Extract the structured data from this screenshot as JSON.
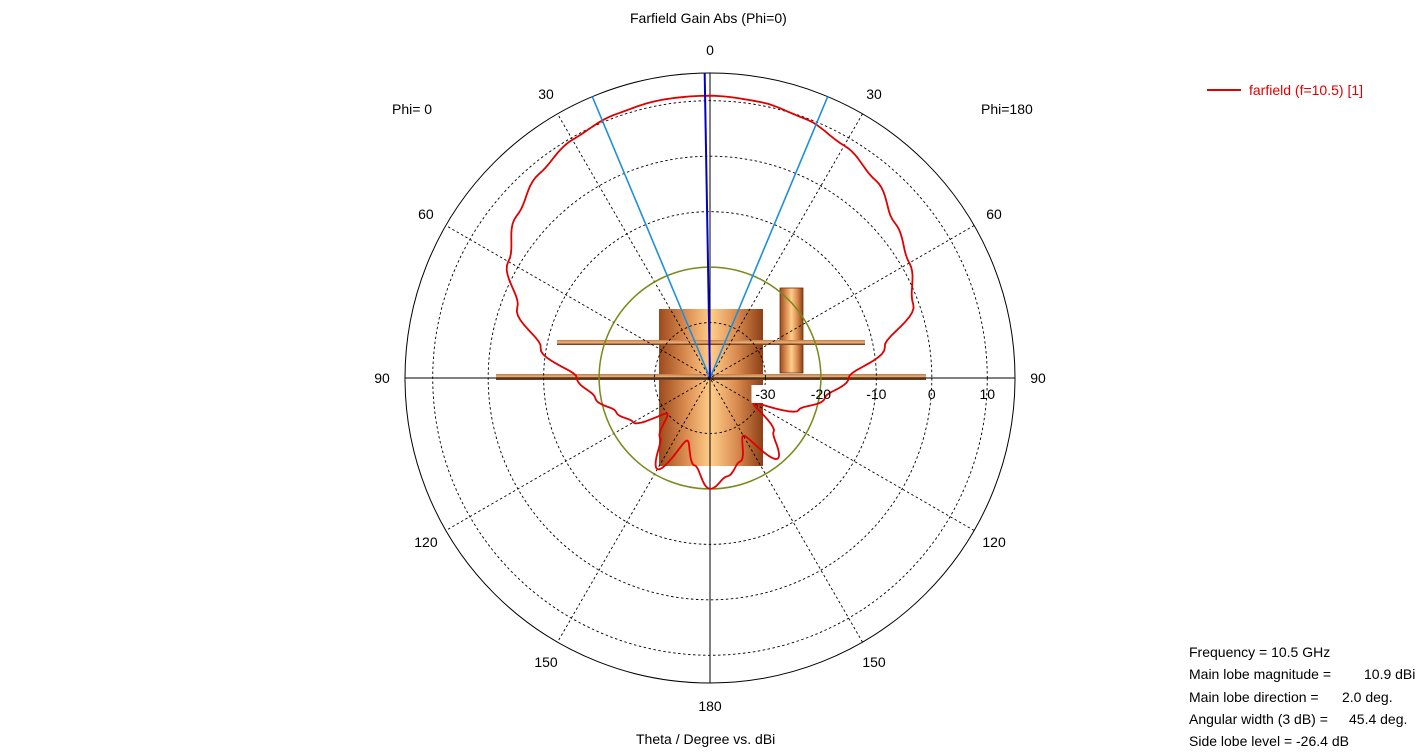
{
  "title": "Farfield Gain Abs (Phi=0)",
  "xlabel": "Theta / Degree vs. dBi",
  "phi_left": "Phi=  0",
  "phi_right": "Phi=180",
  "legend": {
    "label": "farfield (f=10.5) [1]",
    "color": "#e00000"
  },
  "info": {
    "frequency": "Frequency = 10.5 GHz",
    "main_lobe_magnitude_label": "Main lobe magnitude =",
    "main_lobe_magnitude_value": "10.9 dBi",
    "main_lobe_direction_label": "Main lobe direction =",
    "main_lobe_direction_value": "2.0 deg.",
    "angular_width_label": "Angular width (3 dB) =",
    "angular_width_value": "45.4 deg.",
    "side_lobe_level": "Side lobe level =  -26.4 dB"
  },
  "chart_data": {
    "type": "polar",
    "title": "Farfield Gain Abs (Phi=0)",
    "xlabel": "Theta / Degree vs. dBi",
    "angle_ticks": [
      "0",
      "30",
      "60",
      "90",
      "120",
      "150",
      "180",
      "150",
      "120",
      "90",
      "60",
      "30"
    ],
    "radial_ticks": [
      "-30",
      "-20",
      "-10",
      "0",
      "10"
    ],
    "radial_range": [
      -40,
      15
    ],
    "grid": true,
    "legend_position": "top-right",
    "main_lobe_direction_deg": 2.0,
    "main_lobe_magnitude_dbi": 10.9,
    "beamwidth_3db_deg": 45.4,
    "side_lobe_level_db": -26.4,
    "reference_circle_dbi": -20,
    "series": [
      {
        "name": "farfield (f=10.5) [1]",
        "color": "#e00000",
        "theta_deg": [
          -180,
          -170,
          -160,
          -150,
          -140,
          -130,
          -120,
          -110,
          -100,
          -90,
          -80,
          -70,
          -60,
          -50,
          -40,
          -30,
          -20,
          -10,
          0,
          10,
          20,
          30,
          40,
          50,
          60,
          70,
          80,
          90,
          100,
          110,
          120,
          130,
          140,
          150,
          160,
          170,
          180
        ],
        "gain_dbi": [
          -20,
          -24,
          -28,
          -21,
          -26,
          -30,
          -24,
          -22,
          -19,
          -16,
          -9,
          -3,
          2,
          5.5,
          8,
          9.6,
          10.5,
          10.9,
          10.9,
          10.6,
          9.8,
          8.4,
          6.5,
          3.5,
          1.5,
          -1,
          -8,
          -15,
          -19,
          -23,
          -31,
          -25,
          -21,
          -28,
          -24,
          -22,
          -20
        ]
      }
    ]
  }
}
